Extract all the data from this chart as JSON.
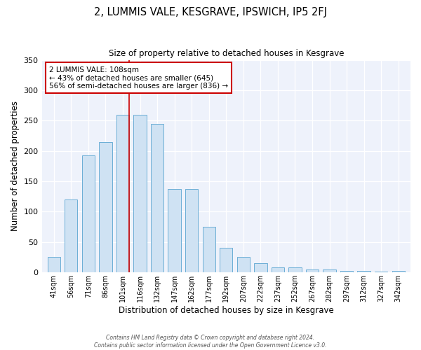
{
  "title": "2, LUMMIS VALE, KESGRAVE, IPSWICH, IP5 2FJ",
  "subtitle": "Size of property relative to detached houses in Kesgrave",
  "xlabel": "Distribution of detached houses by size in Kesgrave",
  "ylabel": "Number of detached properties",
  "bin_labels": [
    "41sqm",
    "56sqm",
    "71sqm",
    "86sqm",
    "101sqm",
    "116sqm",
    "132sqm",
    "147sqm",
    "162sqm",
    "177sqm",
    "192sqm",
    "207sqm",
    "222sqm",
    "237sqm",
    "252sqm",
    "267sqm",
    "282sqm",
    "297sqm",
    "312sqm",
    "327sqm",
    "342sqm"
  ],
  "bar_heights": [
    25,
    120,
    193,
    215,
    260,
    260,
    245,
    137,
    137,
    75,
    40,
    25,
    15,
    8,
    8,
    5,
    5,
    3,
    3,
    1,
    2
  ],
  "bar_color": "#cfe2f3",
  "bar_edge_color": "#6baed6",
  "ylim": [
    0,
    350
  ],
  "yticks": [
    0,
    50,
    100,
    150,
    200,
    250,
    300,
    350
  ],
  "marker_bin_index": 4,
  "marker_color": "#cc0000",
  "annotation_title": "2 LUMMIS VALE: 108sqm",
  "annotation_line1": "← 43% of detached houses are smaller (645)",
  "annotation_line2": "56% of semi-detached houses are larger (836) →",
  "annotation_box_color": "#cc0000",
  "footer_line1": "Contains HM Land Registry data © Crown copyright and database right 2024.",
  "footer_line2": "Contains public sector information licensed under the Open Government Licence v3.0.",
  "background_color": "#ffffff",
  "plot_bg_color": "#eef2fb"
}
